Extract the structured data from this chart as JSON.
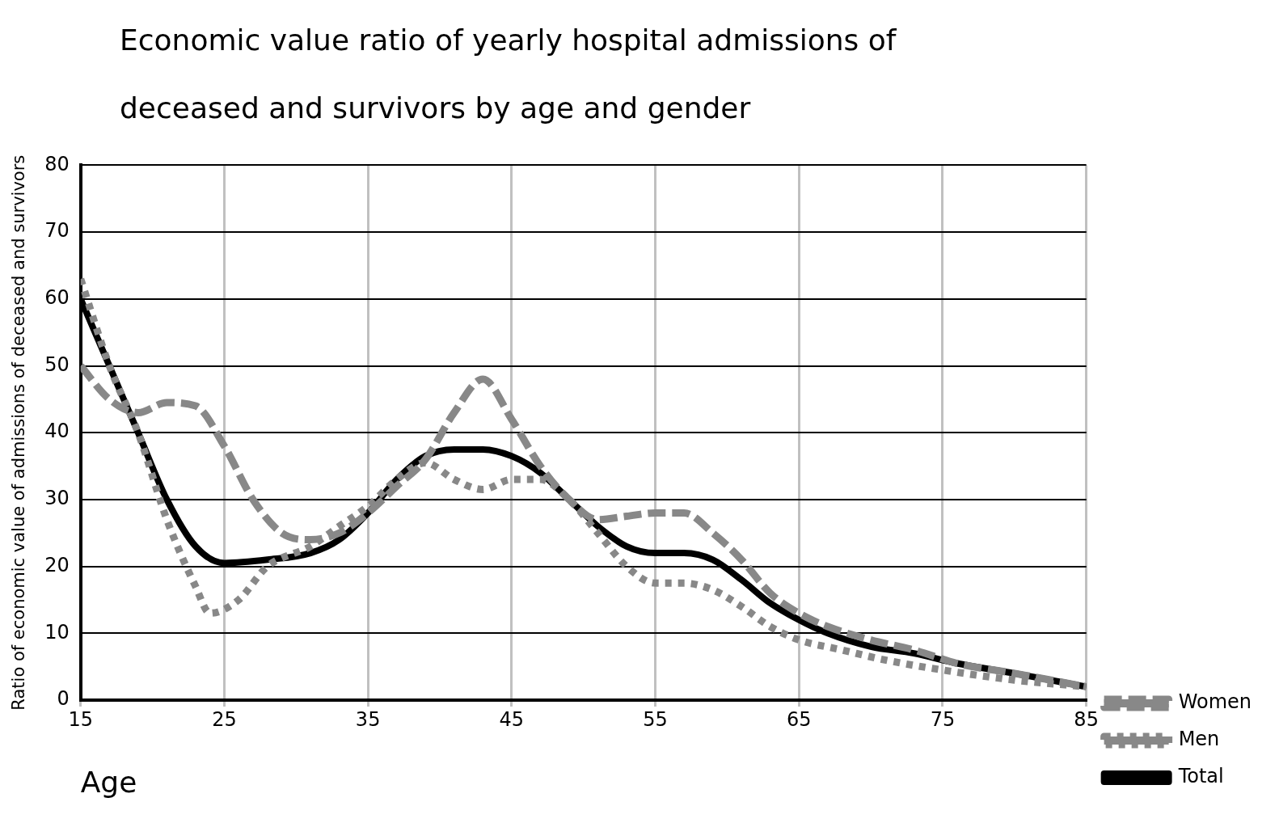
{
  "chart_data": {
    "type": "line",
    "title": "Economic value ratio of yearly hospital admissions of deceased and survivors by age and gender",
    "xlabel": "Age",
    "ylabel": "Ratio of economic value of admissions of deceased and survivors",
    "xlim": [
      15,
      85
    ],
    "xticks": [
      15,
      25,
      35,
      45,
      55,
      65,
      75,
      85
    ],
    "ylim": [
      0,
      80
    ],
    "yticks": [
      0,
      10,
      20,
      30,
      40,
      50,
      60,
      70,
      80
    ],
    "grid": true,
    "legend": "right",
    "marker": "none",
    "series": [
      {
        "name": "Women",
        "color": "#888888",
        "line_style": "dashed",
        "x": [
          15,
          17,
          19,
          21,
          23,
          25,
          27,
          29,
          31,
          33,
          35,
          37,
          39,
          41,
          43,
          45,
          47,
          49,
          51,
          53,
          55,
          57,
          59,
          61,
          63,
          65,
          67,
          70,
          73,
          76,
          80,
          85
        ],
        "values": [
          50,
          45,
          43,
          44.5,
          44,
          38,
          30,
          25,
          24,
          25,
          28,
          32,
          36,
          43,
          48,
          42,
          35,
          30,
          27,
          27.5,
          28,
          28,
          25,
          21,
          16,
          13,
          11,
          9,
          7.5,
          5.5,
          4,
          2
        ]
      },
      {
        "name": "Men",
        "color": "#888888",
        "line_style": "dotted",
        "x": [
          15,
          17,
          19,
          21,
          23,
          24,
          26,
          28,
          31,
          33,
          35,
          37,
          39,
          41,
          43,
          45,
          47,
          49,
          51,
          53,
          55,
          57,
          59,
          61,
          63,
          65,
          68,
          71,
          75,
          80,
          85
        ],
        "values": [
          63,
          50,
          40,
          27,
          17,
          13,
          15,
          20,
          23,
          26,
          29,
          33,
          35.5,
          33,
          31.5,
          33,
          33,
          30,
          25,
          20,
          17.5,
          17.5,
          16.5,
          14,
          11,
          9,
          7.5,
          6,
          4.5,
          3,
          2
        ]
      },
      {
        "name": "Total",
        "color": "#000000",
        "line_style": "solid",
        "x": [
          15,
          17,
          19,
          21,
          23,
          25,
          28,
          31,
          33,
          35,
          37,
          39,
          41,
          43,
          45,
          47,
          49,
          51,
          53,
          55,
          57,
          59,
          61,
          63,
          65,
          67,
          70,
          73,
          76,
          80,
          85
        ],
        "values": [
          60,
          50,
          40,
          30,
          23,
          20.5,
          21,
          22,
          24,
          28,
          33,
          36.5,
          37.5,
          37.5,
          36.5,
          34,
          30,
          26,
          23,
          22,
          22,
          21,
          18,
          14.5,
          12,
          10,
          8,
          7,
          5.5,
          4,
          2
        ]
      }
    ]
  }
}
